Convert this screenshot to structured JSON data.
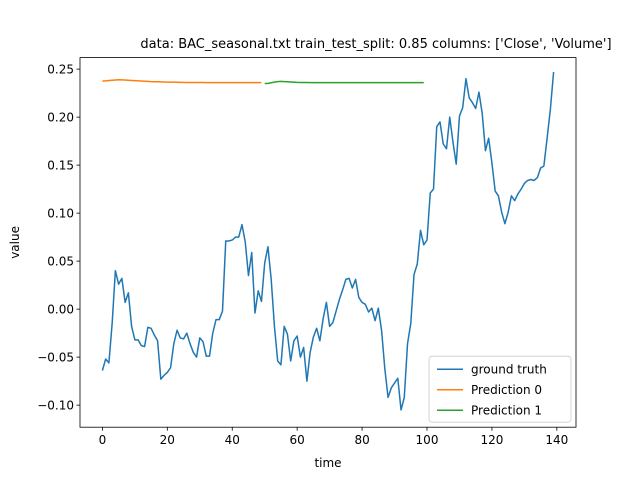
{
  "chart_data": {
    "type": "line",
    "title": "data: BAC_seasonal.txt train_test_split: 0.85 columns: ['Close', 'Volume']",
    "xlabel": "time",
    "ylabel": "value",
    "xlim": [
      -6.9,
      145.9
    ],
    "ylim": [
      -0.123,
      0.262
    ],
    "xticks": [
      0,
      20,
      40,
      60,
      80,
      100,
      120,
      140
    ],
    "yticks": [
      -0.1,
      -0.05,
      0.0,
      0.05,
      0.1,
      0.15,
      0.2,
      0.25
    ],
    "ytick_labels": [
      "−0.10",
      "−0.05",
      "0.00",
      "0.05",
      "0.10",
      "0.15",
      "0.20",
      "0.25"
    ],
    "legend": {
      "placement": "lower-right"
    },
    "series": [
      {
        "name": "ground truth",
        "color": "#1f77b4",
        "y": [
          -0.064,
          -0.052,
          -0.056,
          -0.015,
          0.04,
          0.026,
          0.032,
          0.007,
          0.017,
          -0.018,
          -0.032,
          -0.032,
          -0.038,
          -0.039,
          -0.019,
          -0.02,
          -0.027,
          -0.033,
          -0.073,
          -0.069,
          -0.066,
          -0.061,
          -0.036,
          -0.022,
          -0.03,
          -0.031,
          -0.025,
          -0.036,
          -0.045,
          -0.05,
          -0.03,
          -0.034,
          -0.049,
          -0.049,
          -0.025,
          -0.011,
          -0.011,
          -0.002,
          0.071,
          0.071,
          0.072,
          0.075,
          0.075,
          0.088,
          0.07,
          0.035,
          0.059,
          -0.004,
          0.019,
          0.008,
          0.048,
          0.065,
          0.031,
          -0.018,
          -0.054,
          -0.058,
          -0.018,
          -0.026,
          -0.054,
          -0.033,
          -0.028,
          -0.05,
          -0.04,
          -0.075,
          -0.045,
          -0.029,
          -0.02,
          -0.033,
          -0.01,
          0.007,
          -0.018,
          -0.014,
          -0.002,
          0.01,
          0.02,
          0.031,
          0.032,
          0.022,
          0.031,
          0.012,
          0.007,
          0.005,
          -0.003,
          0.001,
          -0.012,
          0.001,
          -0.022,
          -0.062,
          -0.092,
          -0.082,
          -0.077,
          -0.072,
          -0.105,
          -0.092,
          -0.036,
          -0.015,
          0.036,
          0.047,
          0.082,
          0.067,
          0.072,
          0.121,
          0.125,
          0.19,
          0.195,
          0.172,
          0.167,
          0.2,
          0.174,
          0.151,
          0.201,
          0.21,
          0.24,
          0.22,
          0.215,
          0.209,
          0.226,
          0.204,
          0.165,
          0.178,
          0.152,
          0.123,
          0.118,
          0.101,
          0.089,
          0.101,
          0.118,
          0.113,
          0.12,
          0.125,
          0.131,
          0.134,
          0.135,
          0.134,
          0.137,
          0.147,
          0.149,
          0.178,
          0.208,
          0.247
        ]
      },
      {
        "name": "Prediction 0",
        "color": "#ff7f0e",
        "x_start": 0,
        "y": [
          0.2375,
          0.2378,
          0.2381,
          0.2384,
          0.2387,
          0.2389,
          0.2388,
          0.2386,
          0.2384,
          0.2382,
          0.238,
          0.2378,
          0.2376,
          0.2374,
          0.2372,
          0.237,
          0.2369,
          0.2368,
          0.2367,
          0.2366,
          0.2365,
          0.2364,
          0.2364,
          0.2363,
          0.2362,
          0.2362,
          0.2361,
          0.2361,
          0.236,
          0.236,
          0.236,
          0.236,
          0.2359,
          0.2359,
          0.2359,
          0.2359,
          0.2359,
          0.2359,
          0.2359,
          0.2359,
          0.2359,
          0.2359,
          0.2359,
          0.2359,
          0.2359,
          0.2359,
          0.2359,
          0.2359,
          0.2359,
          0.2359
        ]
      },
      {
        "name": "Prediction 1",
        "color": "#2ca02c",
        "x_start": 50,
        "y": [
          0.235,
          0.2352,
          0.2358,
          0.2365,
          0.237,
          0.2372,
          0.237,
          0.2368,
          0.2366,
          0.2364,
          0.2362,
          0.2361,
          0.236,
          0.236,
          0.2359,
          0.2359,
          0.2359,
          0.2359,
          0.2359,
          0.2359,
          0.2359,
          0.2359,
          0.2359,
          0.2359,
          0.2359,
          0.2359,
          0.2359,
          0.2359,
          0.2359,
          0.2359,
          0.2359,
          0.2359,
          0.2359,
          0.2359,
          0.2359,
          0.2359,
          0.2359,
          0.2359,
          0.2359,
          0.2359,
          0.2359,
          0.2359,
          0.2359,
          0.2359,
          0.2359,
          0.2359,
          0.2359,
          0.2359,
          0.2359,
          0.2359
        ]
      }
    ]
  }
}
